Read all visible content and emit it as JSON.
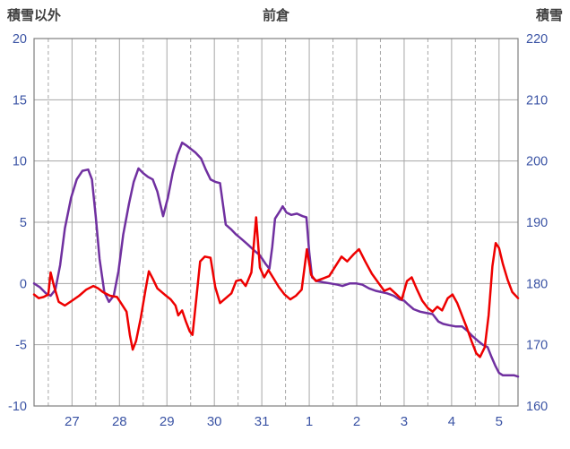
{
  "chart_data": {
    "type": "line",
    "title": "前倉",
    "legend": "none",
    "grid": "on",
    "colors": {
      "red_series": "#ee0000",
      "purple_series": "#7030a0",
      "grid": "#a6a6a6",
      "border": "#7f7f7f",
      "tick_label": "#3a53a4",
      "title": "#404040"
    },
    "left_axis": {
      "label": "積雪以外",
      "min": -10,
      "max": 20,
      "ticks": [
        20,
        15,
        10,
        5,
        0,
        -5,
        -10
      ]
    },
    "right_axis": {
      "label": "積雪",
      "min": 160,
      "max": 220,
      "ticks": [
        220,
        210,
        200,
        190,
        180,
        170,
        160
      ]
    },
    "x_axis": {
      "min": 26.7,
      "max": 36.9,
      "tick_labels": [
        "27",
        "28",
        "29",
        "30",
        "31",
        "1",
        "2",
        "3",
        "4",
        "5"
      ],
      "tick_positions": [
        27.5,
        28.5,
        29.5,
        30.5,
        31.5,
        32.5,
        33.5,
        34.5,
        35.5,
        36.5
      ],
      "solid_gridlines": [
        27.5,
        28.5,
        29.5,
        30.5,
        31.5,
        32.5,
        33.5,
        34.5,
        35.5,
        36.5
      ],
      "dashed_gridlines": [
        27,
        28,
        29,
        30,
        31,
        32,
        33,
        34,
        35,
        36
      ]
    },
    "series": [
      {
        "id": "snow-depth",
        "axis": "right",
        "color_key": "purple_series",
        "points": [
          [
            26.7,
            180
          ],
          [
            26.82,
            179.4
          ],
          [
            26.95,
            178.4
          ],
          [
            27.05,
            178.0
          ],
          [
            27.15,
            179.0
          ],
          [
            27.25,
            183.0
          ],
          [
            27.35,
            189.0
          ],
          [
            27.48,
            194.0
          ],
          [
            27.6,
            197.0
          ],
          [
            27.72,
            198.4
          ],
          [
            27.84,
            198.6
          ],
          [
            27.92,
            197.0
          ],
          [
            28.0,
            191.0
          ],
          [
            28.08,
            184.0
          ],
          [
            28.18,
            178.6
          ],
          [
            28.28,
            177.0
          ],
          [
            28.38,
            178.0
          ],
          [
            28.48,
            182.0
          ],
          [
            28.58,
            188.0
          ],
          [
            28.7,
            193.0
          ],
          [
            28.8,
            196.6
          ],
          [
            28.9,
            198.8
          ],
          [
            29.0,
            198.0
          ],
          [
            29.1,
            197.4
          ],
          [
            29.2,
            197.0
          ],
          [
            29.3,
            195.0
          ],
          [
            29.42,
            191.0
          ],
          [
            29.52,
            194.0
          ],
          [
            29.62,
            198.0
          ],
          [
            29.72,
            201.0
          ],
          [
            29.82,
            203.0
          ],
          [
            29.9,
            202.6
          ],
          [
            30.0,
            202.0
          ],
          [
            30.1,
            201.4
          ],
          [
            30.22,
            200.4
          ],
          [
            30.32,
            198.6
          ],
          [
            30.42,
            197.0
          ],
          [
            30.52,
            196.6
          ],
          [
            30.62,
            196.4
          ],
          [
            30.68,
            193.0
          ],
          [
            30.74,
            189.6
          ],
          [
            30.86,
            188.8
          ],
          [
            30.96,
            188.0
          ],
          [
            31.08,
            187.2
          ],
          [
            31.2,
            186.4
          ],
          [
            31.34,
            185.4
          ],
          [
            31.46,
            184.6
          ],
          [
            31.58,
            183.2
          ],
          [
            31.66,
            182.4
          ],
          [
            31.72,
            186.0
          ],
          [
            31.78,
            190.6
          ],
          [
            31.88,
            191.8
          ],
          [
            31.94,
            192.6
          ],
          [
            32.02,
            191.6
          ],
          [
            32.12,
            191.2
          ],
          [
            32.24,
            191.4
          ],
          [
            32.36,
            191.0
          ],
          [
            32.44,
            190.8
          ],
          [
            32.5,
            185.0
          ],
          [
            32.56,
            181.0
          ],
          [
            32.66,
            180.4
          ],
          [
            32.8,
            180.2
          ],
          [
            32.95,
            180.0
          ],
          [
            33.1,
            179.8
          ],
          [
            33.2,
            179.6
          ],
          [
            33.35,
            180.0
          ],
          [
            33.5,
            180.0
          ],
          [
            33.62,
            179.8
          ],
          [
            33.76,
            179.2
          ],
          [
            33.9,
            178.8
          ],
          [
            34.02,
            178.6
          ],
          [
            34.14,
            178.4
          ],
          [
            34.28,
            178.0
          ],
          [
            34.4,
            177.4
          ],
          [
            34.5,
            177.2
          ],
          [
            34.58,
            176.6
          ],
          [
            34.7,
            175.8
          ],
          [
            34.84,
            175.4
          ],
          [
            34.96,
            175.2
          ],
          [
            35.1,
            175.0
          ],
          [
            35.22,
            173.8
          ],
          [
            35.32,
            173.4
          ],
          [
            35.44,
            173.2
          ],
          [
            35.58,
            173.0
          ],
          [
            35.72,
            173.0
          ],
          [
            35.84,
            172.2
          ],
          [
            35.94,
            171.4
          ],
          [
            36.06,
            170.6
          ],
          [
            36.16,
            170.0
          ],
          [
            36.26,
            169.6
          ],
          [
            36.34,
            168.0
          ],
          [
            36.42,
            166.6
          ],
          [
            36.5,
            165.4
          ],
          [
            36.58,
            165.0
          ],
          [
            36.7,
            165.0
          ],
          [
            36.82,
            165.0
          ],
          [
            36.9,
            164.8
          ]
        ]
      },
      {
        "id": "non-snow",
        "axis": "left",
        "color_key": "red_series",
        "points": [
          [
            26.7,
            -0.9
          ],
          [
            26.8,
            -1.2
          ],
          [
            26.9,
            -1.1
          ],
          [
            27.0,
            -0.9
          ],
          [
            27.05,
            0.9
          ],
          [
            27.12,
            -0.2
          ],
          [
            27.22,
            -1.5
          ],
          [
            27.35,
            -1.8
          ],
          [
            27.5,
            -1.4
          ],
          [
            27.65,
            -1.0
          ],
          [
            27.8,
            -0.5
          ],
          [
            27.95,
            -0.2
          ],
          [
            28.05,
            -0.4
          ],
          [
            28.15,
            -0.7
          ],
          [
            28.3,
            -1.0
          ],
          [
            28.45,
            -1.1
          ],
          [
            28.55,
            -1.7
          ],
          [
            28.65,
            -2.3
          ],
          [
            28.72,
            -4.2
          ],
          [
            28.78,
            -5.4
          ],
          [
            28.85,
            -4.7
          ],
          [
            28.95,
            -2.8
          ],
          [
            29.05,
            -0.5
          ],
          [
            29.12,
            1.0
          ],
          [
            29.2,
            0.4
          ],
          [
            29.3,
            -0.4
          ],
          [
            29.45,
            -0.9
          ],
          [
            29.58,
            -1.3
          ],
          [
            29.68,
            -1.8
          ],
          [
            29.74,
            -2.6
          ],
          [
            29.82,
            -2.2
          ],
          [
            29.9,
            -3.1
          ],
          [
            29.98,
            -3.9
          ],
          [
            30.04,
            -4.2
          ],
          [
            30.12,
            -1.2
          ],
          [
            30.2,
            1.8
          ],
          [
            30.3,
            2.2
          ],
          [
            30.42,
            2.1
          ],
          [
            30.52,
            -0.3
          ],
          [
            30.62,
            -1.6
          ],
          [
            30.74,
            -1.2
          ],
          [
            30.86,
            -0.8
          ],
          [
            30.96,
            0.2
          ],
          [
            31.06,
            0.3
          ],
          [
            31.16,
            -0.2
          ],
          [
            31.28,
            0.9
          ],
          [
            31.38,
            5.4
          ],
          [
            31.46,
            1.3
          ],
          [
            31.55,
            0.5
          ],
          [
            31.64,
            1.1
          ],
          [
            31.75,
            0.4
          ],
          [
            31.86,
            -0.3
          ],
          [
            31.98,
            -0.9
          ],
          [
            32.1,
            -1.3
          ],
          [
            32.22,
            -1.0
          ],
          [
            32.34,
            -0.5
          ],
          [
            32.45,
            2.8
          ],
          [
            32.54,
            0.7
          ],
          [
            32.64,
            0.2
          ],
          [
            32.78,
            0.4
          ],
          [
            32.92,
            0.6
          ],
          [
            33.05,
            1.4
          ],
          [
            33.18,
            2.2
          ],
          [
            33.3,
            1.8
          ],
          [
            33.44,
            2.4
          ],
          [
            33.55,
            2.8
          ],
          [
            33.68,
            1.8
          ],
          [
            33.82,
            0.8
          ],
          [
            33.95,
            0.1
          ],
          [
            34.08,
            -0.6
          ],
          [
            34.2,
            -0.4
          ],
          [
            34.34,
            -0.9
          ],
          [
            34.45,
            -1.3
          ],
          [
            34.56,
            0.2
          ],
          [
            34.66,
            0.5
          ],
          [
            34.76,
            -0.4
          ],
          [
            34.88,
            -1.4
          ],
          [
            35.0,
            -2.0
          ],
          [
            35.1,
            -2.3
          ],
          [
            35.2,
            -1.9
          ],
          [
            35.3,
            -2.2
          ],
          [
            35.42,
            -1.2
          ],
          [
            35.52,
            -0.9
          ],
          [
            35.62,
            -1.6
          ],
          [
            35.72,
            -2.6
          ],
          [
            35.82,
            -3.6
          ],
          [
            35.92,
            -4.7
          ],
          [
            36.02,
            -5.7
          ],
          [
            36.1,
            -6.0
          ],
          [
            36.2,
            -5.2
          ],
          [
            36.28,
            -2.6
          ],
          [
            36.36,
            1.4
          ],
          [
            36.43,
            3.3
          ],
          [
            36.5,
            2.9
          ],
          [
            36.58,
            1.6
          ],
          [
            36.68,
            0.3
          ],
          [
            36.78,
            -0.7
          ],
          [
            36.9,
            -1.2
          ]
        ]
      }
    ]
  }
}
